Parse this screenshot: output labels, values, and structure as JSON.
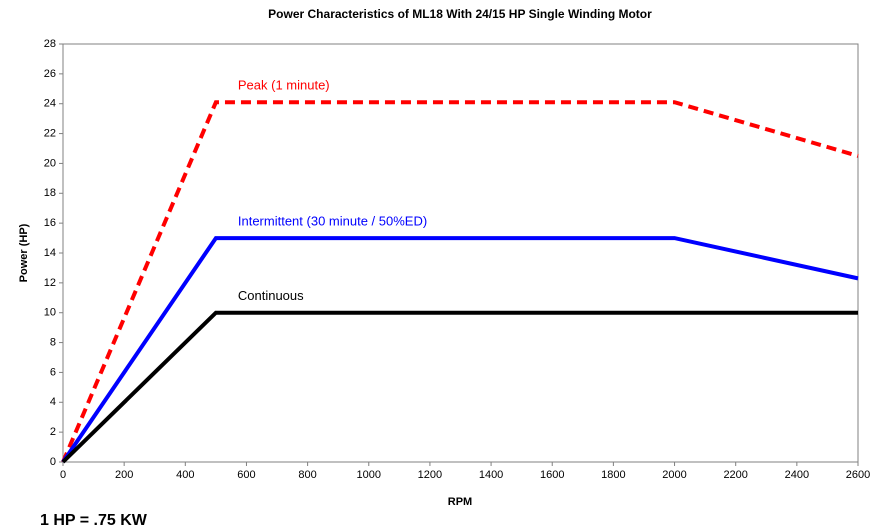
{
  "chart_data": {
    "type": "line",
    "title": "Power Characteristics of ML18 With 24/15 HP Single Winding Motor",
    "x_label": "RPM",
    "y_label": "Power (HP)",
    "x": [
      0,
      500,
      2000,
      2600
    ],
    "series": [
      {
        "name": "Peak (1 minute)",
        "color": "#ff0000",
        "dashed": true,
        "values": [
          0,
          24.1,
          24.1,
          20.5
        ]
      },
      {
        "name": "Intermittent (30 minute / 50%ED)",
        "color": "#0000ff",
        "dashed": false,
        "values": [
          0,
          15,
          15,
          12.3
        ]
      },
      {
        "name": "Continuous",
        "color": "#000000",
        "dashed": false,
        "values": [
          0,
          10,
          10,
          10
        ]
      }
    ],
    "xlim": [
      0,
      2600
    ],
    "xticks": [
      0,
      200,
      400,
      600,
      800,
      1000,
      1200,
      1400,
      1600,
      1800,
      2000,
      2200,
      2400,
      2600
    ],
    "ylim": [
      0,
      28
    ],
    "yticks": [
      0,
      2,
      4,
      6,
      8,
      10,
      12,
      14,
      16,
      18,
      20,
      22,
      24,
      26,
      28
    ],
    "grid": false,
    "note": "1 HP = .75 KW"
  }
}
